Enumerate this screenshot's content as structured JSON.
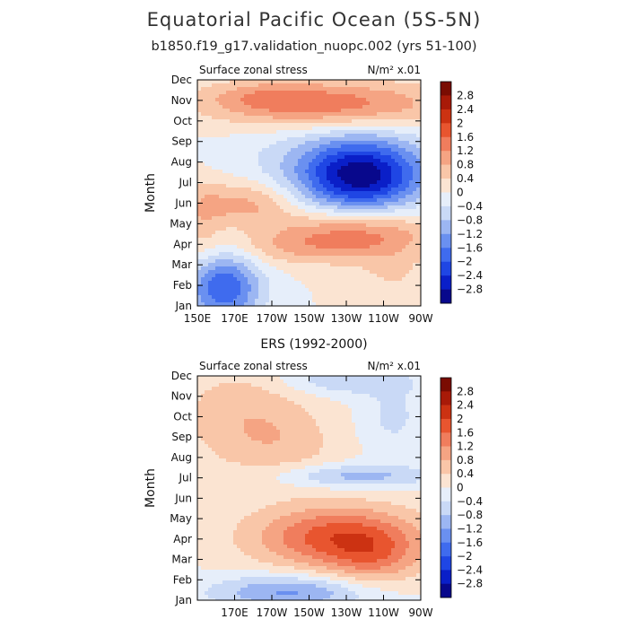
{
  "figure": {
    "title": "Equatorial Pacific Ocean (5S-5N)",
    "subtitle": "b1850.f19_g17.validation_nuopc.002 (yrs 51-100)"
  },
  "contour_levels": [
    -2.8,
    -2.4,
    -2,
    -1.6,
    -1.2,
    -0.8,
    -0.4,
    0,
    0.4,
    0.8,
    1.2,
    1.6,
    2,
    2.4,
    2.8
  ],
  "colorbar_labels": [
    "2.8",
    "2.4",
    "2",
    "1.6",
    "1.2",
    "0.8",
    "0.4",
    "0",
    "−0.4",
    "−0.8",
    "−1.2",
    "−1.6",
    "−2",
    "−2.4",
    "−2.8"
  ],
  "colors": [
    "#08088c",
    "#0a1fc8",
    "#1f46e4",
    "#3f6bee",
    "#6a90f0",
    "#9cb6f2",
    "#c9d9f6",
    "#e6eefa",
    "#fbe4d2",
    "#f9c6a8",
    "#f5a483",
    "#f07d5d",
    "#e8552f",
    "#cc3212",
    "#a81a08",
    "#7a0c02"
  ],
  "chart_data": [
    {
      "type": "heatmap",
      "title": "b1850.f19_g17.validation_nuopc.002 (yrs 51-100)",
      "left_label": "Surface zonal stress",
      "units_label": "N/m² x.01",
      "xlabel": "",
      "ylabel": "Month",
      "x_range": [
        150,
        270
      ],
      "x_ticks": [
        150,
        170,
        190,
        210,
        230,
        250,
        270
      ],
      "x_tick_labels": [
        "150E",
        "170E",
        "170W",
        "150W",
        "130W",
        "110W",
        "90W"
      ],
      "y_range": [
        1,
        12
      ],
      "y_ticks": [
        1,
        2,
        3,
        4,
        5,
        6,
        7,
        8,
        9,
        10,
        11,
        12
      ],
      "y_tick_labels": [
        "Jan",
        "Feb",
        "Mar",
        "Apr",
        "May",
        "Jun",
        "Jul",
        "Aug",
        "Sep",
        "Oct",
        "Nov",
        "Dec"
      ],
      "features": [
        {
          "lon": 164,
          "month": 1.9,
          "amp": -2.0,
          "sx": 14,
          "sy": 1.2
        },
        {
          "lon": 238,
          "month": 7.3,
          "amp": -2.4,
          "sx": 22,
          "sy": 1.2
        },
        {
          "lon": 230,
          "month": 7.8,
          "amp": -0.8,
          "sx": 38,
          "sy": 1.5
        },
        {
          "lon": 220,
          "month": 10.8,
          "amp": 1.5,
          "sx": 45,
          "sy": 0.8
        },
        {
          "lon": 185,
          "month": 11.2,
          "amp": 0.5,
          "sx": 20,
          "sy": 0.5
        },
        {
          "lon": 235,
          "month": 4.6,
          "amp": 1.3,
          "sx": 30,
          "sy": 0.8
        },
        {
          "lon": 175,
          "month": 6.0,
          "amp": 1.0,
          "sx": 20,
          "sy": 0.8
        },
        {
          "lon": 205,
          "month": 3.8,
          "amp": 0.6,
          "sx": 30,
          "sy": 0.6
        },
        {
          "lon": 255,
          "month": 2.5,
          "amp": 0.4,
          "sx": 15,
          "sy": 1.2
        },
        {
          "lon": 152,
          "month": 5.0,
          "amp": 0.5,
          "sx": 8,
          "sy": 1.5
        }
      ]
    },
    {
      "type": "heatmap",
      "title": "ERS (1992-2000)",
      "left_label": "Surface zonal stress",
      "units_label": "N/m² x.01",
      "xlabel": "",
      "ylabel": "Month",
      "x_range": [
        150,
        270
      ],
      "x_ticks": [
        170,
        190,
        210,
        230,
        250,
        270
      ],
      "x_tick_labels": [
        "170E",
        "170W",
        "150W",
        "130W",
        "110W",
        "90W"
      ],
      "y_range": [
        1,
        12
      ],
      "y_ticks": [
        1,
        2,
        3,
        4,
        5,
        6,
        7,
        8,
        9,
        10,
        11,
        12
      ],
      "y_tick_labels": [
        "Jan",
        "Feb",
        "Mar",
        "Apr",
        "May",
        "Jun",
        "Jul",
        "Aug",
        "Sep",
        "Oct",
        "Nov",
        "Dec"
      ],
      "features": [
        {
          "lon": 225,
          "month": 4.1,
          "amp": 1.8,
          "sx": 32,
          "sy": 1.1
        },
        {
          "lon": 245,
          "month": 3.0,
          "amp": 0.8,
          "sx": 18,
          "sy": 1.0
        },
        {
          "lon": 200,
          "month": 1.4,
          "amp": -1.3,
          "sx": 30,
          "sy": 0.6
        },
        {
          "lon": 235,
          "month": 7.1,
          "amp": -1.0,
          "sx": 30,
          "sy": 0.4
        },
        {
          "lon": 230,
          "month": 11.8,
          "amp": -0.8,
          "sx": 25,
          "sy": 0.5
        },
        {
          "lon": 255,
          "month": 10.0,
          "amp": -0.5,
          "sx": 12,
          "sy": 1.2
        },
        {
          "lon": 175,
          "month": 10.0,
          "amp": 0.7,
          "sx": 25,
          "sy": 1.8
        },
        {
          "lon": 200,
          "month": 8.5,
          "amp": 0.4,
          "sx": 20,
          "sy": 1.2
        }
      ]
    }
  ]
}
